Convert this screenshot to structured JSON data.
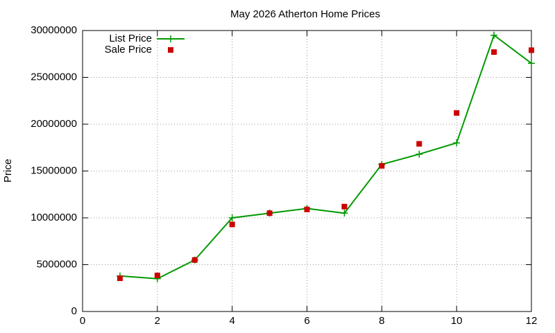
{
  "chart_data": {
    "type": "line",
    "title": "May 2026 Atherton Home Prices",
    "ylabel": "Price",
    "x": [
      1,
      2,
      3,
      4,
      5,
      6,
      7,
      8,
      9,
      10,
      11,
      12
    ],
    "series": [
      {
        "name": "List Price",
        "color": "#009900",
        "style": "linespoints",
        "values": [
          3800000,
          3500000,
          5500000,
          10000000,
          10500000,
          11000000,
          10500000,
          15700000,
          16800000,
          18000000,
          29500000,
          26500000
        ]
      },
      {
        "name": "Sale Price",
        "color": "#cc0000",
        "style": "points",
        "values": [
          3550000,
          3850000,
          5500000,
          9300000,
          10500000,
          10900000,
          11200000,
          15550000,
          17900000,
          21200000,
          27700000,
          27900000
        ]
      }
    ],
    "xlim": [
      0,
      12
    ],
    "xticks": [
      0,
      2,
      4,
      6,
      8,
      10,
      12
    ],
    "ylim": [
      0,
      30000000
    ],
    "yticks": [
      0,
      5000000,
      10000000,
      15000000,
      20000000,
      25000000,
      30000000
    ],
    "grid": true,
    "legend": "top-left"
  }
}
